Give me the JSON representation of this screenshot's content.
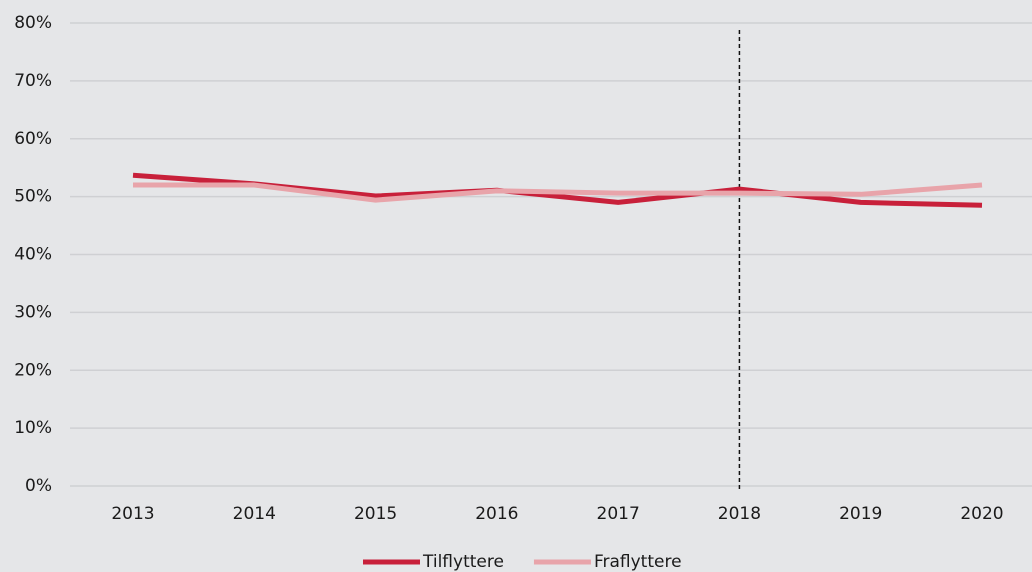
{
  "chart_data": {
    "type": "line",
    "categories": [
      "2013",
      "2014",
      "2015",
      "2016",
      "2017",
      "2018",
      "2019",
      "2020"
    ],
    "series": [
      {
        "name": "Tilflyttere",
        "color": "#c8203a",
        "values": [
          53.7,
          52.2,
          50.1,
          51.1,
          49.0,
          51.3,
          49.0,
          48.5
        ]
      },
      {
        "name": "Fraflyttere",
        "color": "#e8a4aa",
        "values": [
          52.0,
          52.0,
          49.4,
          51.0,
          50.6,
          50.6,
          50.4,
          52.0
        ]
      }
    ],
    "ylim": [
      0,
      80
    ],
    "yticks": [
      {
        "value": 0,
        "label": "0%"
      },
      {
        "value": 10,
        "label": "10%"
      },
      {
        "value": 20,
        "label": "20%"
      },
      {
        "value": 30,
        "label": "30%"
      },
      {
        "value": 40,
        "label": "40%"
      },
      {
        "value": 50,
        "label": "50%"
      },
      {
        "value": 60,
        "label": "60%"
      },
      {
        "value": 70,
        "label": "70%"
      },
      {
        "value": 80,
        "label": "80%"
      }
    ],
    "grid": true,
    "reference_line": {
      "x": "2018"
    },
    "legend": "bottom"
  }
}
